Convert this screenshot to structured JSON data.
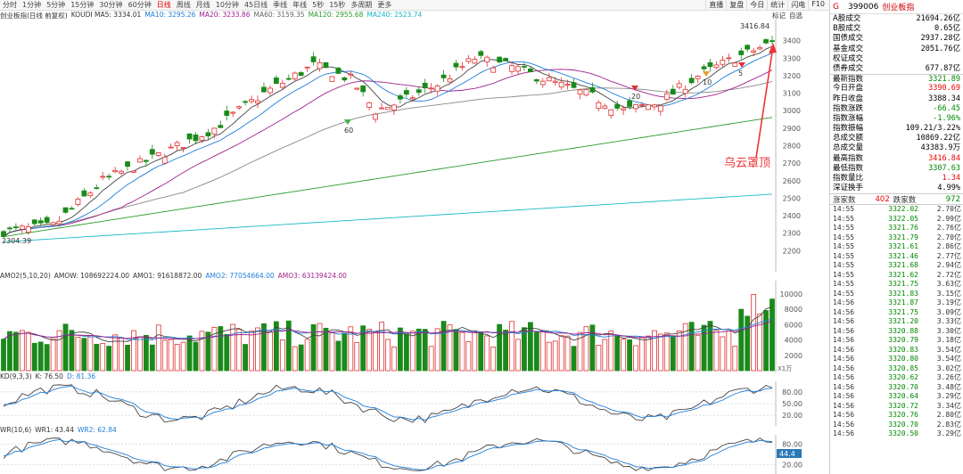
{
  "toolbar": {
    "timeframes": [
      "分时",
      "1分钟",
      "5分钟",
      "15分钟",
      "30分钟",
      "60分钟",
      "日线",
      "周线",
      "月线",
      "10分钟",
      "45日线",
      "季线",
      "年线",
      "5秒",
      "15秒",
      "多周期",
      "更多"
    ],
    "active_index": 6,
    "right_buttons": [
      "直播",
      "复盘",
      "今日",
      "统计",
      "闪电",
      "F10"
    ]
  },
  "main_info": [
    {
      "text": "创业板指(日线 前复权)",
      "color": "#333"
    },
    {
      "text": "KOUDI MA5: 3334.01",
      "color": "#333"
    },
    {
      "text": "MA10: 3295.26",
      "color": "#1e7ed8"
    },
    {
      "text": "MA20: 3233.86",
      "color": "#a0208c"
    },
    {
      "text": "MA60: 3159.35",
      "color": "#666"
    },
    {
      "text": "MA120: 2955.68",
      "color": "#2a9a2a"
    },
    {
      "text": "MA240: 2523.74",
      "color": "#18b8c8"
    }
  ],
  "main_corner": {
    "mark": "标记",
    "self": "自选"
  },
  "vol_info": [
    {
      "text": "AMO2(5,10,20)",
      "color": "#333"
    },
    {
      "text": "AMOW: 108692224.00",
      "color": "#333"
    },
    {
      "text": "AMO1: 91618872.00",
      "color": "#333"
    },
    {
      "text": "AMO2: 77054664.00",
      "color": "#1e7ed8"
    },
    {
      "text": "AMO3: 63139424.00",
      "color": "#a0208c"
    }
  ],
  "kd_info": [
    {
      "text": "KD(9,3,3)",
      "color": "#333"
    },
    {
      "text": "K: 76.50",
      "color": "#333"
    },
    {
      "text": "D: 81.36",
      "color": "#1e7ed8"
    }
  ],
  "wr_info": [
    {
      "text": "WR(10,6)",
      "color": "#333"
    },
    {
      "text": "WR1: 43.44",
      "color": "#333"
    },
    {
      "text": "WR2: 62.84",
      "color": "#1e7ed8"
    }
  ],
  "annotation": "乌云罩顶",
  "chart_data": [
    {
      "type": "candlestick",
      "title": "创业板指(日线 前复权)",
      "y_ticks": [
        2200,
        2300,
        2400,
        2500,
        2600,
        2700,
        2800,
        2900,
        3000,
        3100,
        3200,
        3300,
        3400
      ],
      "ylim": [
        2120,
        3480
      ],
      "labels": {
        "high": "3416.84",
        "low": "2304.39",
        "marks": [
          "60",
          "20",
          "10",
          "5"
        ]
      },
      "ma": {
        "MA5": 3334.01,
        "MA10": 3295.26,
        "MA20": 3233.86,
        "MA60": 3159.35,
        "MA120": 2955.68,
        "MA240": 2523.74
      }
    },
    {
      "type": "bar",
      "title": "AMO2(5,10,20)",
      "unit": "X1万",
      "y_ticks": [
        2000,
        4000,
        6000,
        8000,
        10000
      ],
      "ylim": [
        0,
        11500
      ]
    },
    {
      "type": "line",
      "title": "KD(9,3,3)",
      "y_ticks": [
        20.0,
        50.0,
        80.0
      ],
      "ylim": [
        0,
        100
      ],
      "series": [
        {
          "name": "K",
          "last": 76.5
        },
        {
          "name": "D",
          "last": 81.36
        }
      ]
    },
    {
      "type": "line",
      "title": "WR(10,6)",
      "y_ticks": [
        20.0,
        80.0
      ],
      "ylim": [
        0,
        100
      ],
      "badge": "44.4",
      "series": [
        {
          "name": "WR1",
          "last": 43.44
        },
        {
          "name": "WR2",
          "last": 62.84
        }
      ]
    }
  ],
  "sidebar": {
    "g": "G",
    "code": "399006",
    "name": "创业板指",
    "rows": [
      {
        "label": "A股成交",
        "value": "21694.26亿",
        "cls": ""
      },
      {
        "label": "B股成交",
        "value": "0.65亿",
        "cls": ""
      },
      {
        "label": "国债成交",
        "value": "2937.28亿",
        "cls": ""
      },
      {
        "label": "基金成交",
        "value": "2051.76亿",
        "cls": ""
      },
      {
        "label": "权证成交",
        "value": "",
        "cls": ""
      },
      {
        "label": "债券成交",
        "value": "677.87亿",
        "cls": ""
      },
      {
        "label": "最新指数",
        "value": "3321.89",
        "cls": "green"
      },
      {
        "label": "今日开盘",
        "value": "3390.69",
        "cls": "red"
      },
      {
        "label": "昨日收盘",
        "value": "3388.34",
        "cls": ""
      },
      {
        "label": "指数涨跌",
        "value": "-66.45",
        "cls": "green"
      },
      {
        "label": "指数涨幅",
        "value": "-1.96%",
        "cls": "green"
      },
      {
        "label": "指数振幅",
        "value": "109.21/3.22%",
        "cls": ""
      },
      {
        "label": "总成交额",
        "value": "10869.22亿",
        "cls": ""
      },
      {
        "label": "总成交量",
        "value": "43383.9万",
        "cls": ""
      },
      {
        "label": "最高指数",
        "value": "3416.84",
        "cls": "red"
      },
      {
        "label": "最低指数",
        "value": "3307.63",
        "cls": "green"
      },
      {
        "label": "指数量比",
        "value": "1.34",
        "cls": "red"
      },
      {
        "label": "深证换手",
        "value": "4.99%",
        "cls": ""
      }
    ],
    "up_label": "涨家数",
    "up_count": "402",
    "down_label": "跌家数",
    "down_count": "972",
    "ticks": [
      [
        "14:55",
        "3322.02",
        "2.70亿"
      ],
      [
        "14:55",
        "3322.05",
        "2.99亿"
      ],
      [
        "14:55",
        "3321.76",
        "2.76亿"
      ],
      [
        "14:55",
        "3321.79",
        "2.70亿"
      ],
      [
        "14:55",
        "3321.61",
        "2.86亿"
      ],
      [
        "14:55",
        "3321.46",
        "2.77亿"
      ],
      [
        "14:55",
        "3321.68",
        "2.94亿"
      ],
      [
        "14:55",
        "3321.62",
        "2.72亿"
      ],
      [
        "14:55",
        "3321.75",
        "3.63亿"
      ],
      [
        "14:55",
        "3321.83",
        "3.15亿"
      ],
      [
        "14:56",
        "3321.87",
        "3.19亿"
      ],
      [
        "14:56",
        "3321.75",
        "3.09亿"
      ],
      [
        "14:56",
        "3321.20",
        "3.33亿"
      ],
      [
        "14:56",
        "3320.88",
        "3.30亿"
      ],
      [
        "14:56",
        "3320.79",
        "3.18亿"
      ],
      [
        "14:56",
        "3320.83",
        "3.54亿"
      ],
      [
        "14:56",
        "3320.80",
        "3.54亿"
      ],
      [
        "14:56",
        "3320.85",
        "3.02亿"
      ],
      [
        "14:56",
        "3320.62",
        "3.26亿"
      ],
      [
        "14:56",
        "3320.70",
        "3.48亿"
      ],
      [
        "14:56",
        "3320.64",
        "3.29亿"
      ],
      [
        "14:56",
        "3320.72",
        "3.34亿"
      ],
      [
        "14:56",
        "3320.76",
        "2.80亿"
      ],
      [
        "14:56",
        "3320.70",
        "2.83亿"
      ],
      [
        "14:56",
        "3320.50",
        "3.29亿"
      ]
    ]
  }
}
